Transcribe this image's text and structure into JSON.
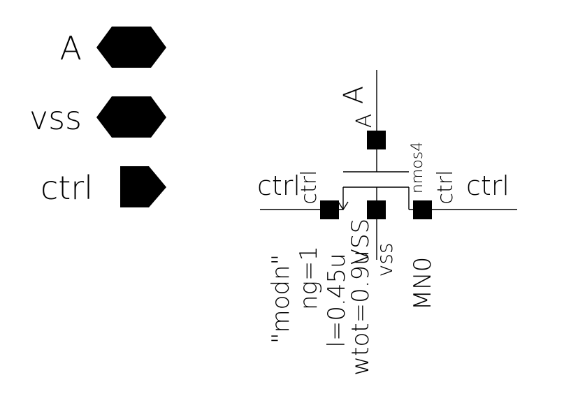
{
  "colors": {
    "background": "#ffffff",
    "ink": "#000000"
  },
  "pin_legend": [
    {
      "name": "A",
      "shape": "hexagon-bidirectional-pin"
    },
    {
      "name": "vss",
      "shape": "hexagon-bidirectional-pin"
    },
    {
      "name": "ctrl",
      "shape": "pentagon-input-pin"
    }
  ],
  "schematic": {
    "net_labels": {
      "top": "A",
      "left": "ctrl",
      "right": "ctrl"
    },
    "terminals": {
      "drain": "A",
      "gate": "ctrl",
      "source": "ctrl",
      "bulk": "vss"
    },
    "device": {
      "cell": "nmos4",
      "instance": "MN0",
      "bulk_net": "vss",
      "model": "\"modn\"",
      "ng": "ng=1",
      "length": "l=0.45u",
      "wtot": "wtot=0.9u",
      "bulk_param": "VSS"
    }
  }
}
